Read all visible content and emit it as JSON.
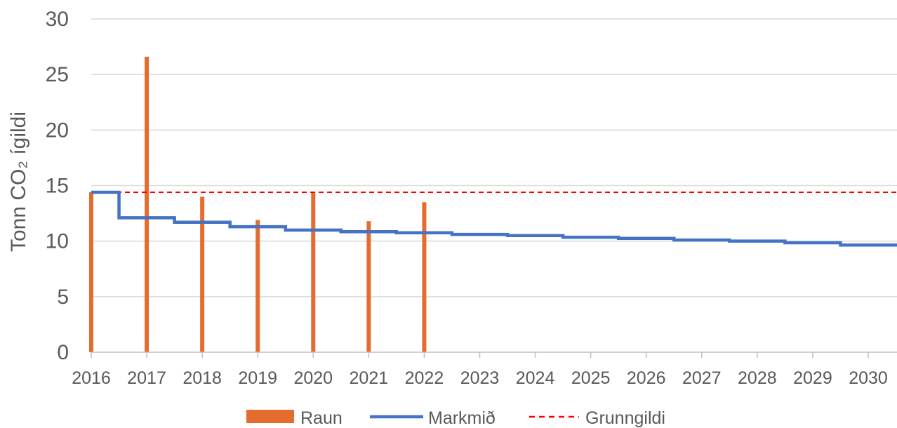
{
  "chart_data": {
    "type": "bar",
    "title": "",
    "xlabel": "",
    "ylabel": "Tonn CO₂ ígildi",
    "ylim": [
      0,
      30
    ],
    "yticks": [
      0,
      5,
      10,
      15,
      20,
      25,
      30
    ],
    "categories": [
      "2016",
      "2017",
      "2018",
      "2019",
      "2020",
      "2021",
      "2022",
      "2023",
      "2024",
      "2025",
      "2026",
      "2027",
      "2028",
      "2029",
      "2030"
    ],
    "grid": true,
    "legend_placement": "bottom",
    "series": [
      {
        "name": "Raun",
        "kind": "bar",
        "color": "#E46C2E",
        "values": [
          14.4,
          26.6,
          14.0,
          11.9,
          14.4,
          11.8,
          13.5,
          null,
          null,
          null,
          null,
          null,
          null,
          null,
          null
        ]
      },
      {
        "name": "Markmið",
        "kind": "step-line",
        "color": "#4472C4",
        "values": [
          14.4,
          12.1,
          11.7,
          11.3,
          11.0,
          10.85,
          10.75,
          10.6,
          10.5,
          10.35,
          10.25,
          10.1,
          10.0,
          9.85,
          9.65
        ]
      },
      {
        "name": "Grunngildi",
        "kind": "dashed-line",
        "color": "#FF0000",
        "value": 14.4
      }
    ]
  }
}
